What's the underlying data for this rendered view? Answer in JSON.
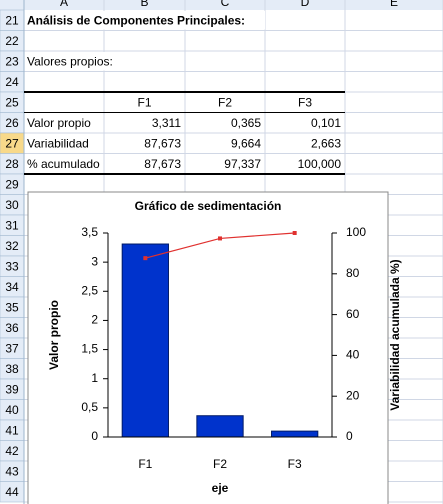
{
  "sheet": {
    "columns": [
      "A",
      "B",
      "C",
      "D",
      "E"
    ],
    "row_numbers": [
      21,
      22,
      23,
      24,
      25,
      26,
      27,
      28,
      29,
      30,
      31,
      32,
      33,
      34,
      35,
      36,
      37,
      38,
      39,
      40,
      41,
      42,
      43,
      44
    ],
    "title": "Análisis de Componentes Principales:",
    "subtitle": "Valores propios:",
    "table": {
      "header": [
        "F1",
        "F2",
        "F3"
      ],
      "rows": [
        [
          "Valor propio",
          "3,311",
          "0,365",
          "0,101"
        ],
        [
          "Variabilidad",
          "87,673",
          "9,664",
          "2,663"
        ],
        [
          "% acumulado",
          "87,673",
          "97,337",
          "100,000"
        ]
      ]
    }
  },
  "chart_data": {
    "type": "bar",
    "title": "Gráfico de sedimentación",
    "xlabel": "eje",
    "ylabel": "Valor propio",
    "y2label": "Variabilidad acumulada %)",
    "categories": [
      "F1",
      "F2",
      "F3"
    ],
    "series": [
      {
        "color": "#0033cc",
        "values": [
          3.311,
          0.365,
          0.101
        ]
      },
      {
        "color": "#e0312f",
        "type": "line",
        "axis": "y2",
        "values": [
          87.673,
          97.337,
          100
        ]
      }
    ],
    "ylim": [
      0,
      3.5
    ],
    "yticks": [
      0,
      {
        "value": 0.5,
        "label": "0,5"
      },
      1,
      {
        "value": 1.5,
        "label": "1,5"
      },
      2,
      {
        "value": 2.5,
        "label": "2,5"
      },
      3,
      {
        "value": 3.5,
        "label": "3,5"
      }
    ],
    "y2lim": [
      0,
      100
    ],
    "y2ticks": [
      0,
      20,
      40,
      60,
      80,
      100
    ]
  }
}
